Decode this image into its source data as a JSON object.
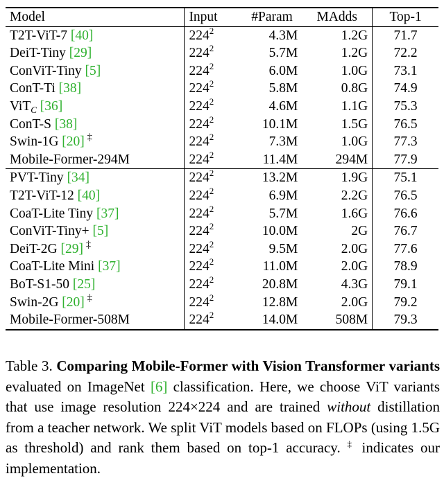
{
  "table": {
    "headers": {
      "model": "Model",
      "input": "Input",
      "param": "#Param",
      "madds": "MAdds",
      "top1": "Top-1"
    },
    "groups": [
      [
        {
          "model": "T2T-ViT-7 ",
          "ref": "[40]",
          "sub": "",
          "dagger": "",
          "bold": false,
          "input": "224",
          "sup": "2",
          "param": "4.3M",
          "madds": "1.2G",
          "top1": "71.7"
        },
        {
          "model": "DeiT-Tiny ",
          "ref": "[29]",
          "sub": "",
          "dagger": "",
          "bold": false,
          "input": "224",
          "sup": "2",
          "param": "5.7M",
          "madds": "1.2G",
          "top1": "72.2"
        },
        {
          "model": "ConViT-Tiny ",
          "ref": "[5]",
          "sub": "",
          "dagger": "",
          "bold": false,
          "input": "224",
          "sup": "2",
          "param": "6.0M",
          "madds": "1.0G",
          "top1": "73.1"
        },
        {
          "model": "ConT-Ti ",
          "ref": "[38]",
          "sub": "",
          "dagger": "",
          "bold": false,
          "input": "224",
          "sup": "2",
          "param": "5.8M",
          "madds": "0.8G",
          "top1": "74.9"
        },
        {
          "model": "ViT",
          "ref": "[36]",
          "sub": "C",
          "dagger": "",
          "bold": false,
          "input": "224",
          "sup": "2",
          "param": "4.6M",
          "madds": "1.1G",
          "top1": "75.3"
        },
        {
          "model": "ConT-S ",
          "ref": "[38]",
          "sub": "",
          "dagger": "",
          "bold": false,
          "input": "224",
          "sup": "2",
          "param": "10.1M",
          "madds": "1.5G",
          "top1": "76.5"
        },
        {
          "model": "Swin-1G ",
          "ref": "[20]",
          "sub": "",
          "dagger": "‡",
          "bold": false,
          "input": "224",
          "sup": "2",
          "param": "7.3M",
          "madds": "1.0G",
          "top1": "77.3"
        },
        {
          "model": "Mobile-Former-294M",
          "ref": "",
          "sub": "",
          "dagger": "",
          "bold": true,
          "input": "224",
          "sup": "2",
          "param": "11.4M",
          "madds": "294M",
          "top1": "77.9"
        }
      ],
      [
        {
          "model": "PVT-Tiny ",
          "ref": "[34]",
          "sub": "",
          "dagger": "",
          "bold": false,
          "input": "224",
          "sup": "2",
          "param": "13.2M",
          "madds": "1.9G",
          "top1": "75.1"
        },
        {
          "model": "T2T-ViT-12 ",
          "ref": "[40]",
          "sub": "",
          "dagger": "",
          "bold": false,
          "input": "224",
          "sup": "2",
          "param": "6.9M",
          "madds": "2.2G",
          "top1": "76.5"
        },
        {
          "model": "CoaT-Lite Tiny ",
          "ref": "[37]",
          "sub": "",
          "dagger": "",
          "bold": false,
          "input": "224",
          "sup": "2",
          "param": "5.7M",
          "madds": "1.6G",
          "top1": "76.6"
        },
        {
          "model": "ConViT-Tiny+ ",
          "ref": "[5]",
          "sub": "",
          "dagger": "",
          "bold": false,
          "input": "224",
          "sup": "2",
          "param": "10.0M",
          "madds": "2G",
          "top1": "76.7"
        },
        {
          "model": "DeiT-2G ",
          "ref": "[29]",
          "sub": "",
          "dagger": "‡",
          "bold": false,
          "input": "224",
          "sup": "2",
          "param": "9.5M",
          "madds": "2.0G",
          "top1": "77.6"
        },
        {
          "model": "CoaT-Lite Mini ",
          "ref": "[37]",
          "sub": "",
          "dagger": "",
          "bold": false,
          "input": "224",
          "sup": "2",
          "param": "11.0M",
          "madds": "2.0G",
          "top1": "78.9"
        },
        {
          "model": "BoT-S1-50 ",
          "ref": "[25]",
          "sub": "",
          "dagger": "",
          "bold": false,
          "input": "224",
          "sup": "2",
          "param": "20.8M",
          "madds": "4.3G",
          "top1": "79.1"
        },
        {
          "model": "Swin-2G ",
          "ref": "[20]",
          "sub": "",
          "dagger": "‡",
          "bold": false,
          "input": "224",
          "sup": "2",
          "param": "12.8M",
          "madds": "2.0G",
          "top1": "79.2"
        },
        {
          "model": "Mobile-Former-508M",
          "ref": "",
          "sub": "",
          "dagger": "",
          "bold": true,
          "input": "224",
          "sup": "2",
          "param": "14.0M",
          "madds": "508M",
          "top1": "79.3"
        }
      ]
    ]
  },
  "caption": {
    "label": "Table 3. ",
    "bold_title": "Comparing Mobile-Former with Vision Transformer variants",
    "text1": " evaluated on ImageNet ",
    "ref": "[6]",
    "text2": " classification.  Here, we choose ViT variants that use image resolution 224×224 and are trained ",
    "italic": "without",
    "text3": " distillation from a teacher network. We split ViT models based on FLOPs (using 1.5G as threshold) and rank them based on top-1 accuracy. ",
    "dagger": "‡",
    "text4": " indicates our implementation."
  }
}
